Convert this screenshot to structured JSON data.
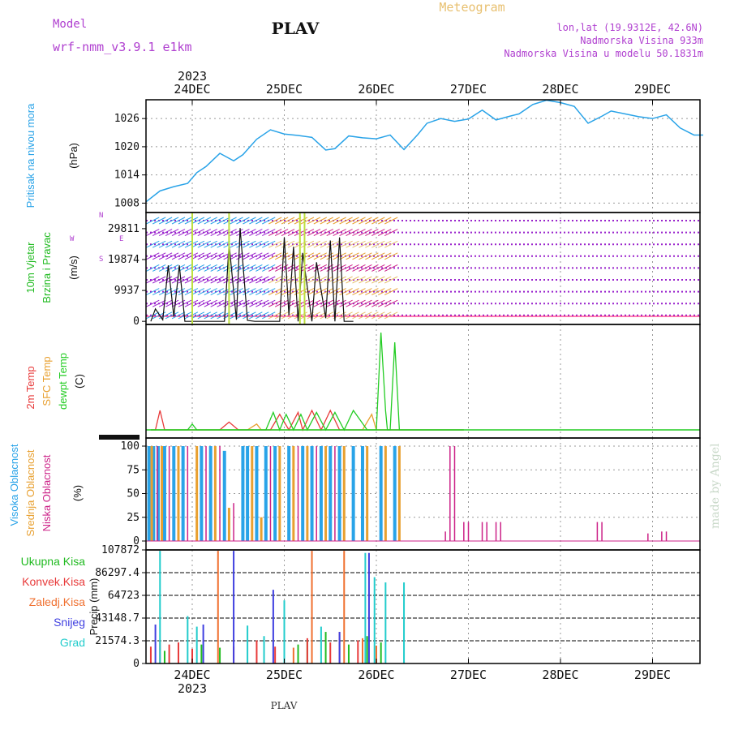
{
  "header": {
    "model_label": "Model",
    "model_name": "wrf-nmm_v3.9.1  e1km",
    "station": "PLAV",
    "product": "Meteogram",
    "location": "lon,lat (19.9312E, 42.6N)",
    "altitude": "Nadmorska Visina 933m",
    "model_altitude": "Nadmorska Visina u modelu 50.1831m",
    "footer_station": "PLAV",
    "watermark": "made by Angel"
  },
  "colors": {
    "pressure": "#29a3e8",
    "wind_label": "#22bb22",
    "temp2m": "#e83a3a",
    "sfc": "#e8a030",
    "dewpt": "#22cc22",
    "cloud_high": "#29a3e8",
    "cloud_mid": "#e8a030",
    "cloud_low": "#cc2288",
    "precip_total": "#22bb22",
    "precip_conv": "#e83a3a",
    "precip_frozen": "#f07030",
    "snow": "#4040e0",
    "graupel": "#22cccc",
    "header_purple": "#b040d0",
    "header_orange": "#e8c070",
    "wind_dots": "#9922cc"
  },
  "chart_data": [
    {
      "type": "line",
      "panel": "pressure",
      "ylabel": [
        "Pritisak na nivou mora",
        "(hPa)"
      ],
      "yticks": [
        1008,
        1014,
        1020,
        1026
      ],
      "ylim": [
        1006,
        1030
      ],
      "x_day": [
        -0.5,
        -0.35,
        -0.2,
        -0.05,
        0.05,
        0.15,
        0.3,
        0.45,
        0.55,
        0.7,
        0.85,
        1.0,
        1.15,
        1.3,
        1.45,
        1.55,
        1.7,
        1.85,
        2.0,
        2.15,
        2.3,
        2.45,
        2.55,
        2.7,
        2.85,
        3.0,
        3.15,
        3.3,
        3.45,
        3.55,
        3.7,
        3.85,
        4.0,
        4.15,
        4.3,
        4.45,
        4.55,
        4.7,
        4.85,
        5.0,
        5.15,
        5.3,
        5.45,
        5.55
      ],
      "values": [
        1008.3,
        1010.6,
        1011.5,
        1012.2,
        1014.5,
        1015.8,
        1018.6,
        1017.0,
        1018.3,
        1021.6,
        1023.6,
        1022.7,
        1022.4,
        1022.0,
        1019.3,
        1019.6,
        1022.3,
        1021.9,
        1021.7,
        1022.5,
        1019.4,
        1022.6,
        1025.0,
        1026.0,
        1025.4,
        1025.9,
        1027.8,
        1025.7,
        1026.5,
        1027.0,
        1029.0,
        1029.9,
        1029.4,
        1028.6,
        1025.0,
        1026.5,
        1027.6,
        1027.0,
        1026.4,
        1026.0,
        1026.8,
        1024.0,
        1022.5,
        1022.5
      ]
    },
    {
      "type": "line",
      "panel": "wind",
      "ylabel": [
        "10m Vjetar",
        "Brzina i Pravac",
        "(m/s)"
      ],
      "yticks": [
        0,
        9937,
        19874,
        29811
      ],
      "ylim": [
        -1000,
        35000
      ],
      "compass": [
        "N",
        "E",
        "S",
        "W"
      ],
      "x_day": [
        -0.45,
        -0.4,
        -0.32,
        -0.26,
        -0.2,
        -0.14,
        -0.08,
        0.0,
        0.35,
        0.4,
        0.48,
        0.52,
        0.6,
        0.68,
        0.95,
        1.0,
        1.05,
        1.1,
        1.15,
        1.2,
        1.3,
        1.35,
        1.45,
        1.5,
        1.55,
        1.6,
        1.65,
        1.7,
        1.75
      ],
      "values": [
        0,
        4000,
        500,
        18000,
        1500,
        18000,
        0,
        0,
        0,
        25000,
        500,
        30000,
        300,
        0,
        0,
        27000,
        2000,
        24000,
        0,
        22000,
        0,
        19000,
        1000,
        26000,
        0,
        27000,
        0,
        0,
        0
      ]
    },
    {
      "type": "line",
      "panel": "temperature",
      "ylabel": [
        "2m Temp",
        "SFC Temp",
        "dewpt Temp",
        "(C)"
      ],
      "series": [
        {
          "name": "2m Temp",
          "x_day": [
            -0.45,
            -0.4,
            -0.35,
            -0.3,
            0.3,
            0.4,
            0.5,
            0.85,
            0.95,
            1.05,
            1.15,
            1.2,
            1.3,
            1.4,
            1.5,
            1.6,
            1.7,
            2.8,
            2.95
          ],
          "values": [
            0,
            0,
            10,
            0,
            0,
            4,
            0,
            0,
            8,
            0,
            9,
            0,
            10,
            0,
            10,
            0,
            0,
            0,
            0
          ]
        },
        {
          "name": "SFC Temp",
          "x_day": [
            -0.45,
            0.6,
            0.7,
            0.75,
            1.7,
            1.85,
            1.95,
            2.0,
            2.05,
            2.95
          ],
          "values": [
            0,
            0,
            3,
            0,
            0,
            0,
            8,
            0,
            0,
            0
          ]
        },
        {
          "name": "dewpt Temp",
          "x_day": [
            -0.45,
            -0.05,
            0.0,
            0.05,
            0.8,
            0.88,
            0.95,
            1.02,
            1.1,
            1.18,
            1.25,
            1.35,
            1.45,
            1.55,
            1.65,
            1.75,
            1.9,
            2.0,
            2.05,
            2.1,
            2.12,
            2.15,
            2.2,
            2.25,
            2.95
          ],
          "values": [
            0,
            0,
            3,
            0,
            0,
            9,
            0,
            8,
            0,
            8,
            0,
            9,
            0,
            9,
            0,
            10,
            0,
            0,
            50,
            10,
            0,
            0,
            45,
            0,
            0
          ]
        }
      ]
    },
    {
      "type": "bar",
      "panel": "clouds",
      "ylabel": [
        "Visoka Oblacnost",
        "Srednja Oblacnost",
        "Niska Oblacnost",
        "(%)"
      ],
      "yticks": [
        0,
        25,
        50,
        75,
        100
      ],
      "ylim": [
        0,
        100
      ],
      "series": [
        {
          "name": "Visoka Oblacnost",
          "x_day": [
            -0.47,
            -0.42,
            -0.37,
            -0.3,
            -0.2,
            -0.1,
            0.1,
            0.2,
            0.35,
            0.55,
            0.6,
            0.7,
            0.8,
            0.9,
            1.05,
            1.2,
            1.3,
            1.4,
            1.5,
            1.6,
            1.75,
            1.85,
            2.05,
            2.2
          ],
          "values": [
            100,
            100,
            100,
            100,
            100,
            100,
            100,
            100,
            95,
            100,
            100,
            100,
            100,
            100,
            100,
            100,
            100,
            100,
            100,
            100,
            100,
            100,
            100,
            100
          ]
        },
        {
          "name": "Srednja Oblacnost",
          "x_day": [
            -0.44,
            -0.33,
            -0.15,
            0.05,
            0.25,
            0.4,
            0.65,
            0.75,
            0.95,
            1.1,
            1.25,
            1.45,
            1.65,
            1.9,
            2.1,
            2.25
          ],
          "values": [
            100,
            100,
            100,
            100,
            100,
            35,
            100,
            25,
            100,
            100,
            100,
            100,
            100,
            100,
            100,
            100
          ]
        },
        {
          "name": "Niska Oblacnost",
          "x_day": [
            -0.38,
            -0.25,
            -0.05,
            0.15,
            0.3,
            0.45,
            0.85,
            1.15,
            1.35,
            1.55,
            2.75,
            2.8,
            2.85,
            2.95,
            3.0,
            3.15,
            3.2,
            3.3,
            3.35,
            4.4,
            4.45,
            4.95,
            5.1,
            5.15
          ],
          "values": [
            100,
            100,
            100,
            100,
            100,
            40,
            100,
            100,
            100,
            100,
            10,
            100,
            100,
            20,
            20,
            20,
            20,
            20,
            20,
            20,
            20,
            8,
            10,
            10
          ]
        }
      ]
    },
    {
      "type": "bar",
      "panel": "precipitation",
      "ylabel": [
        "Precip (mm)"
      ],
      "legend": [
        "Ukupna Kisa",
        "Konvek.Kisa",
        "Zaledj.Kisa",
        "Snijeg",
        "Grad"
      ],
      "yticks": [
        0,
        21574.3,
        43148.7,
        64723,
        86297.4,
        107872
      ],
      "ylim": [
        0,
        107872
      ],
      "series": [
        {
          "name": "Ukupna Kisa",
          "x_day": [
            -0.3,
            0.1,
            0.3,
            1.15,
            1.25,
            1.45,
            1.7,
            1.9,
            2.05
          ],
          "values": [
            12000,
            18000,
            15000,
            18000,
            22000,
            30000,
            18000,
            26000,
            20000
          ]
        },
        {
          "name": "Konvek.Kisa",
          "x_day": [
            -0.45,
            -0.35,
            -0.25,
            -0.15,
            0.0,
            0.45,
            0.7,
            0.9,
            1.0,
            1.25,
            1.5,
            1.6,
            1.8
          ],
          "values": [
            16000,
            22000,
            18000,
            20000,
            14000,
            16000,
            22000,
            16000,
            8000,
            24000,
            20000,
            30000,
            22000
          ]
        },
        {
          "name": "Zaledj.Kisa",
          "x_day": [
            0.28,
            1.1,
            1.3,
            1.65,
            1.85,
            2.0
          ],
          "values": [
            107000,
            15000,
            107000,
            107000,
            24000,
            17000
          ]
        },
        {
          "name": "Snijeg",
          "x_day": [
            -0.4,
            0.12,
            0.45,
            0.88,
            1.6,
            1.92
          ],
          "values": [
            37000,
            37000,
            107000,
            70000,
            30000,
            105000
          ]
        },
        {
          "name": "Grad",
          "x_day": [
            -0.35,
            -0.05,
            0.05,
            0.6,
            0.78,
            1.0,
            1.4,
            1.88,
            1.98,
            2.1,
            2.3
          ],
          "values": [
            107000,
            45000,
            35000,
            36000,
            26000,
            60000,
            35000,
            105000,
            82000,
            77000,
            77000
          ]
        }
      ]
    },
    {
      "type": "axis",
      "panel": "time",
      "x_tick_labels": [
        "24DEC",
        "25DEC",
        "26DEC",
        "27DEC",
        "28DEC",
        "29DEC"
      ],
      "year_label": "2023"
    }
  ]
}
